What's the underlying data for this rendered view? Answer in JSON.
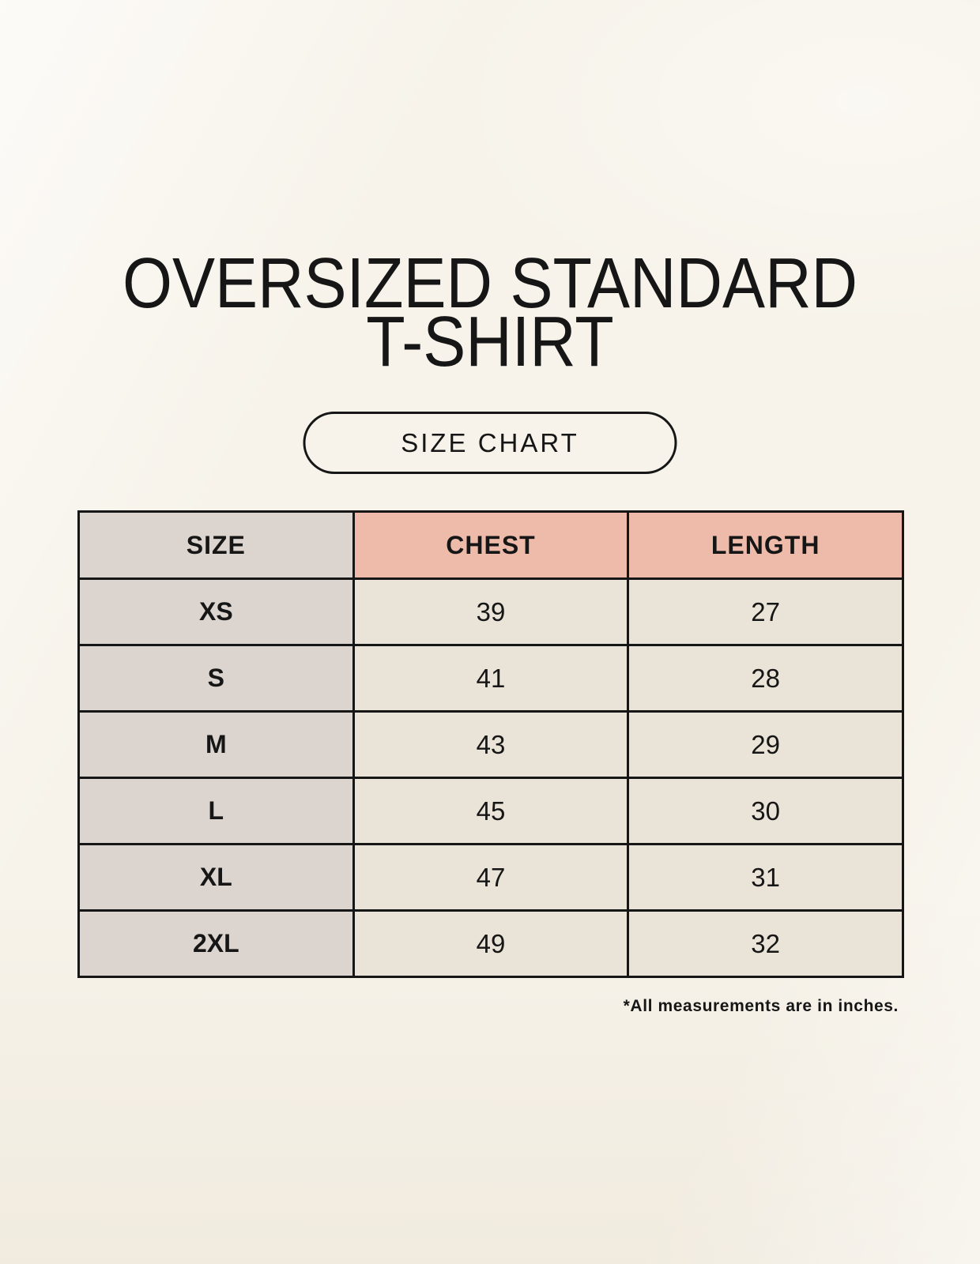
{
  "header": {
    "title_line1": "OVERSIZED STANDARD",
    "title_line2": "T-SHIRT",
    "badge_label": "SIZE CHART"
  },
  "chart_data": {
    "type": "table",
    "title": "OVERSIZED STANDARD T-SHIRT",
    "subtitle": "SIZE CHART",
    "units": "inches",
    "columns": [
      "SIZE",
      "CHEST",
      "LENGTH"
    ],
    "rows": [
      {
        "size": "XS",
        "chest": "39",
        "length": "27"
      },
      {
        "size": "S",
        "chest": "41",
        "length": "28"
      },
      {
        "size": "M",
        "chest": "43",
        "length": "29"
      },
      {
        "size": "L",
        "chest": "45",
        "length": "30"
      },
      {
        "size": "XL",
        "chest": "47",
        "length": "31"
      },
      {
        "size": "2XL",
        "chest": "49",
        "length": "32"
      }
    ]
  },
  "footer": {
    "note": "*All measurements are in inches."
  },
  "colors": {
    "page_bg": "#f7f3ea",
    "header_salmon": "#eebbaa",
    "cell_taupe": "#dcd5cf",
    "cell_cream": "#eae3d7",
    "border": "#161616",
    "text": "#161616"
  }
}
